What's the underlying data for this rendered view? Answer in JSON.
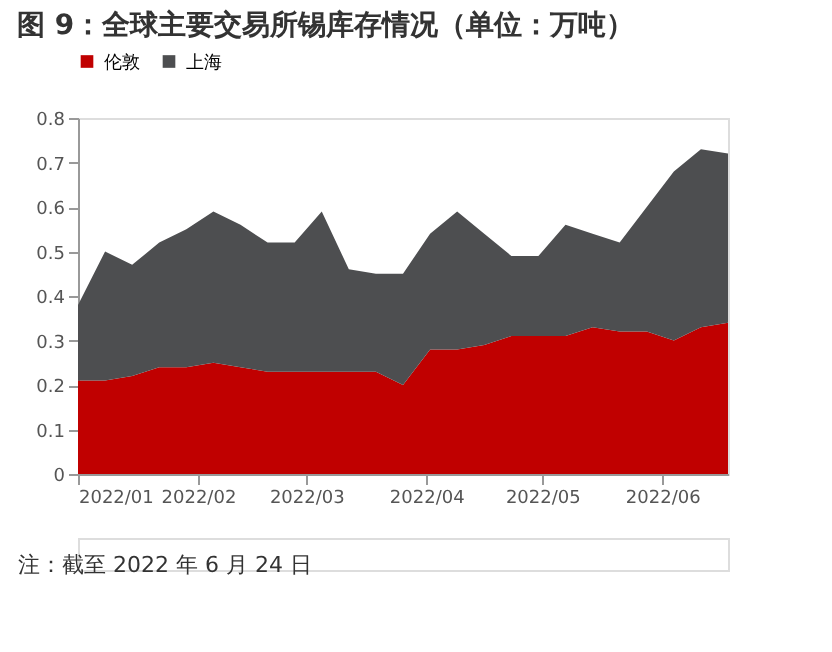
{
  "chart_data": {
    "type": "area",
    "title": "图 9：全球主要交易所锡库存情况（单位：万吨）",
    "stacked": true,
    "x": [
      "2022-01-01",
      "2022-01-08",
      "2022-01-15",
      "2022-01-22",
      "2022-01-29",
      "2022-02-05",
      "2022-02-12",
      "2022-02-19",
      "2022-02-26",
      "2022-03-05",
      "2022-03-12",
      "2022-03-19",
      "2022-03-26",
      "2022-04-02",
      "2022-04-09",
      "2022-04-16",
      "2022-04-23",
      "2022-04-30",
      "2022-05-07",
      "2022-05-14",
      "2022-05-21",
      "2022-05-28",
      "2022-06-04",
      "2022-06-11",
      "2022-06-18"
    ],
    "series": [
      {
        "name": "伦敦",
        "color": "#c00000",
        "values": [
          0.21,
          0.21,
          0.22,
          0.24,
          0.24,
          0.25,
          0.24,
          0.23,
          0.23,
          0.23,
          0.23,
          0.23,
          0.2,
          0.28,
          0.28,
          0.29,
          0.31,
          0.31,
          0.31,
          0.33,
          0.32,
          0.32,
          0.3,
          0.33,
          0.34
        ]
      },
      {
        "name": "上海",
        "color": "#4d4e50",
        "values": [
          0.17,
          0.29,
          0.25,
          0.28,
          0.31,
          0.34,
          0.32,
          0.29,
          0.29,
          0.36,
          0.23,
          0.22,
          0.25,
          0.26,
          0.31,
          0.25,
          0.18,
          0.18,
          0.25,
          0.21,
          0.2,
          0.28,
          0.38,
          0.4,
          0.38
        ]
      }
    ],
    "xlim": [
      "2022-01-01",
      "2022-06-18"
    ],
    "xticks": [
      {
        "value": "2022-01-01",
        "label": "2022/01"
      },
      {
        "value": "2022-02-01",
        "label": "2022/02"
      },
      {
        "value": "2022-03-01",
        "label": "2022/03"
      },
      {
        "value": "2022-04-01",
        "label": "2022/04"
      },
      {
        "value": "2022-05-01",
        "label": "2022/05"
      },
      {
        "value": "2022-06-01",
        "label": "2022/06"
      }
    ],
    "ylim": [
      0,
      0.8
    ],
    "yticks": [
      0,
      0.1,
      0.2,
      0.3,
      0.4,
      0.5,
      0.6,
      0.7,
      0.8
    ],
    "grid": false,
    "legend": "top",
    "annotations": [
      "注：截至 2022 年 6 月 24 日"
    ]
  }
}
